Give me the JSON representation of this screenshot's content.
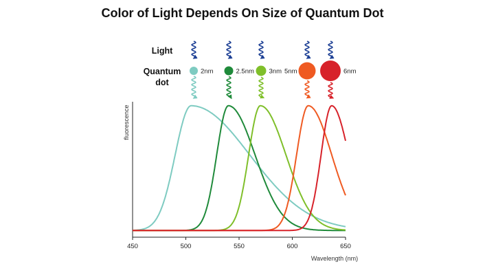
{
  "title": "Color of Light Depends On Size of Quantum Dot",
  "labels": {
    "light": "Light",
    "quantum_dot": [
      "Quantum",
      "dot"
    ]
  },
  "chart_data": {
    "type": "line",
    "title": "Color of Light Depends On Size of Quantum Dot",
    "xlabel": "Wavelength (nm)",
    "ylabel": "fluorescence",
    "xlim": [
      450,
      650
    ],
    "ylim": [
      0,
      1
    ],
    "xticks": [
      450,
      500,
      550,
      600,
      650
    ],
    "grid": false,
    "series": [
      {
        "name": "2nm",
        "peak": 505,
        "width": 15,
        "tail": 55,
        "color": "#7ecbc1",
        "dot_x": 282,
        "dot_r": 6
      },
      {
        "name": "2.5nm",
        "peak": 540,
        "width": 11,
        "tail": 25,
        "color": "#1f8a3a",
        "dot_x": 333,
        "dot_r": 6.5
      },
      {
        "name": "3nm",
        "peak": 570,
        "width": 11,
        "tail": 24,
        "color": "#7fbf2a",
        "dot_x": 380,
        "dot_r": 7.5
      },
      {
        "name": "5nm",
        "peak": 615,
        "width": 11,
        "tail": 22,
        "color": "#ef5a22",
        "dot_x": 447,
        "dot_r": 12.5
      },
      {
        "name": "6nm",
        "peak": 637,
        "width": 10,
        "tail": 16,
        "color": "#d7222a",
        "dot_x": 481,
        "dot_r": 15
      }
    ]
  }
}
